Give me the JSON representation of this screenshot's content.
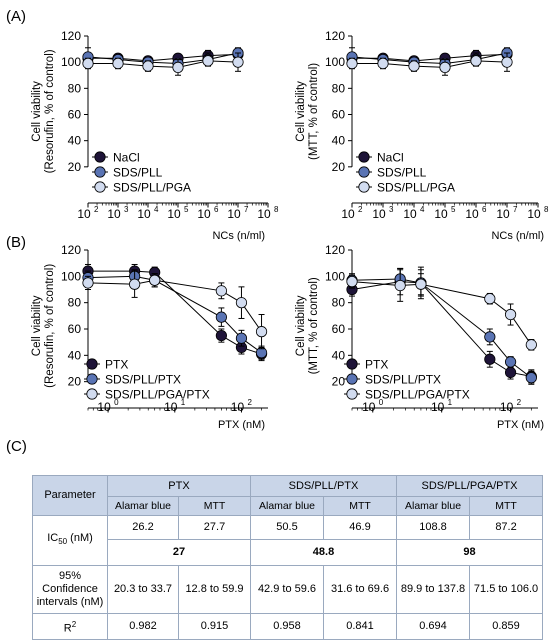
{
  "panels": {
    "a": "(A)",
    "b": "(B)",
    "c": "(C)"
  },
  "colors": {
    "dark": "#1e1438",
    "mid": "#5a74b4",
    "light": "#d2dcf0",
    "grid": "#000000"
  },
  "chart_data": [
    {
      "id": "A-left",
      "type": "line",
      "xscale": "log",
      "ylabel_lines": [
        "Cell viability",
        "(Resorufin, % of control)"
      ],
      "xlabel": "NCs (n/ml)",
      "ylim": [
        0,
        120
      ],
      "yticks": [
        20,
        40,
        60,
        80,
        100,
        120
      ],
      "xlim": [
        100,
        100000000
      ],
      "xticks": [
        {
          "v": 100,
          "label": "10",
          "exp": "2"
        },
        {
          "v": 1000,
          "label": "10",
          "exp": "3"
        },
        {
          "v": 10000,
          "label": "10",
          "exp": "4"
        },
        {
          "v": 100000,
          "label": "10",
          "exp": "5"
        },
        {
          "v": 1000000,
          "label": "10",
          "exp": "6"
        },
        {
          "v": 10000000,
          "label": "10",
          "exp": "7"
        },
        {
          "v": 100000000,
          "label": "10",
          "exp": "8"
        }
      ],
      "legend": "left-bottom",
      "series": [
        {
          "name": "NaCl",
          "color": "#1e1438",
          "x": [
            100,
            1000,
            10000,
            100000,
            1000000,
            10000000
          ],
          "y": [
            103,
            103,
            101,
            103,
            105,
            106
          ],
          "err": [
            4,
            3,
            3,
            3,
            4,
            4
          ]
        },
        {
          "name": "SDS/PLL",
          "color": "#5a74b4",
          "x": [
            100,
            1000,
            10000,
            100000,
            1000000,
            10000000
          ],
          "y": [
            104,
            102,
            100,
            99,
            102,
            107
          ],
          "err": [
            7,
            3,
            3,
            3,
            5,
            4
          ]
        },
        {
          "name": "SDS/PLL/PGA",
          "color": "#d2dcf0",
          "x": [
            100,
            1000,
            10000,
            100000,
            1000000,
            10000000
          ],
          "y": [
            99,
            99,
            97,
            96,
            101,
            100
          ],
          "err": [
            4,
            4,
            4,
            6,
            4,
            7
          ]
        }
      ]
    },
    {
      "id": "A-right",
      "type": "line",
      "xscale": "log",
      "ylabel_lines": [
        "Cell viability",
        "(MTT, % of control)"
      ],
      "xlabel": "NCs (n/ml)",
      "ylim": [
        0,
        120
      ],
      "yticks": [
        20,
        40,
        60,
        80,
        100,
        120
      ],
      "xlim": [
        100,
        100000000
      ],
      "xticks": [
        {
          "v": 100,
          "label": "10",
          "exp": "2"
        },
        {
          "v": 1000,
          "label": "10",
          "exp": "3"
        },
        {
          "v": 10000,
          "label": "10",
          "exp": "4"
        },
        {
          "v": 100000,
          "label": "10",
          "exp": "5"
        },
        {
          "v": 1000000,
          "label": "10",
          "exp": "6"
        },
        {
          "v": 10000000,
          "label": "10",
          "exp": "7"
        },
        {
          "v": 100000000,
          "label": "10",
          "exp": "8"
        }
      ],
      "legend": "left-bottom",
      "series": [
        {
          "name": "NaCl",
          "color": "#1e1438",
          "x": [
            100,
            1000,
            10000,
            100000,
            1000000,
            10000000
          ],
          "y": [
            103,
            103,
            101,
            103,
            105,
            106
          ],
          "err": [
            4,
            3,
            3,
            3,
            4,
            4
          ]
        },
        {
          "name": "SDS/PLL",
          "color": "#5a74b4",
          "x": [
            100,
            1000,
            10000,
            100000,
            1000000,
            10000000
          ],
          "y": [
            104,
            102,
            100,
            99,
            102,
            107
          ],
          "err": [
            7,
            3,
            3,
            3,
            5,
            4
          ]
        },
        {
          "name": "SDS/PLL/PGA",
          "color": "#d2dcf0",
          "x": [
            100,
            1000,
            10000,
            100000,
            1000000,
            10000000
          ],
          "y": [
            99,
            99,
            97,
            96,
            101,
            100
          ],
          "err": [
            4,
            4,
            4,
            6,
            4,
            7
          ]
        }
      ]
    },
    {
      "id": "B-left",
      "type": "line",
      "xscale": "log",
      "ylabel_lines": [
        "Cell viability",
        "(Resorufin, % of control)"
      ],
      "xlabel": "PTX (nM)",
      "ylim": [
        0,
        120
      ],
      "yticks": [
        20,
        40,
        60,
        80,
        100,
        120
      ],
      "xlim": [
        0.5,
        250
      ],
      "xticks": [
        {
          "v": 1,
          "label": "10",
          "exp": "0"
        },
        {
          "v": 10,
          "label": "10",
          "exp": "1"
        },
        {
          "v": 100,
          "label": "10",
          "exp": "2"
        }
      ],
      "legend": "left-bottom",
      "series": [
        {
          "name": "PTX",
          "color": "#1e1438",
          "x": [
            0.5,
            2.5,
            5,
            50,
            100,
            200
          ],
          "y": [
            104,
            104,
            103,
            55,
            46,
            41
          ],
          "err": [
            5,
            5,
            4,
            5,
            5,
            5
          ]
        },
        {
          "name": "SDS/PLL/PTX",
          "color": "#5a74b4",
          "x": [
            0.5,
            2.5,
            5,
            50,
            100,
            200
          ],
          "y": [
            99,
            100,
            97,
            69,
            53,
            42
          ],
          "err": [
            5,
            5,
            5,
            7,
            6,
            5
          ]
        },
        {
          "name": "SDS/PLL/PGA/PTX",
          "color": "#d2dcf0",
          "x": [
            0.5,
            2.5,
            5,
            50,
            100,
            200
          ],
          "y": [
            95,
            94,
            97,
            89,
            80,
            58
          ],
          "err": [
            5,
            10,
            5,
            6,
            12,
            13
          ]
        }
      ]
    },
    {
      "id": "B-right",
      "type": "line",
      "xscale": "log",
      "ylabel_lines": [
        "Cell viability",
        "(MTT, % of control)"
      ],
      "xlabel": "PTX (nM)",
      "ylim": [
        0,
        120
      ],
      "yticks": [
        20,
        40,
        60,
        80,
        100,
        120
      ],
      "xlim": [
        0.5,
        250
      ],
      "xticks": [
        {
          "v": 1,
          "label": "10",
          "exp": "0"
        },
        {
          "v": 10,
          "label": "10",
          "exp": "1"
        },
        {
          "v": 100,
          "label": "10",
          "exp": "2"
        }
      ],
      "legend": "left-bottom",
      "series": [
        {
          "name": "PTX",
          "color": "#1e1438",
          "x": [
            0.5,
            2.5,
            5,
            50,
            100,
            200
          ],
          "y": [
            90,
            96,
            95,
            37,
            27,
            24
          ],
          "err": [
            5,
            10,
            12,
            6,
            5,
            5
          ]
        },
        {
          "name": "SDS/PLL/PTX",
          "color": "#5a74b4",
          "x": [
            0.5,
            2.5,
            5,
            50,
            100,
            200
          ],
          "y": [
            97,
            98,
            95,
            54,
            35,
            23
          ],
          "err": [
            5,
            8,
            10,
            6,
            4,
            5
          ]
        },
        {
          "name": "SDS/PLL/PGA/PTX",
          "color": "#d2dcf0",
          "x": [
            0.5,
            2.5,
            5,
            50,
            100,
            200
          ],
          "y": [
            96,
            93,
            94,
            83,
            71,
            48
          ],
          "err": [
            5,
            12,
            8,
            4,
            8,
            4
          ]
        }
      ]
    }
  ],
  "table": {
    "param_header": "Parameter",
    "groups": [
      "PTX",
      "SDS/PLL/PTX",
      "SDS/PLL/PGA/PTX"
    ],
    "subcols": [
      "Alamar blue",
      "MTT",
      "Alamar blue",
      "MTT",
      "Alamar blue",
      "MTT"
    ],
    "ic50_label": "IC",
    "ic50_sub": "50",
    "ic50_unit": " (nM)",
    "ic50_values": [
      "26.2",
      "27.7",
      "50.5",
      "46.9",
      "108.8",
      "87.2"
    ],
    "combined_values": [
      "27",
      "48.8",
      "98"
    ],
    "ci_label_lines": [
      "95%",
      "Confidence",
      "intervals (nM)"
    ],
    "ci_values": [
      "20.3 to 33.7",
      "12.8 to 59.9",
      "42.9 to 59.6",
      "31.6 to 69.6",
      "89.9 to 137.8",
      "71.5 to 106.0"
    ],
    "r2_label": "R",
    "r2_sup": "2",
    "r2_values": [
      "0.982",
      "0.915",
      "0.958",
      "0.841",
      "0.694",
      "0.859"
    ]
  }
}
